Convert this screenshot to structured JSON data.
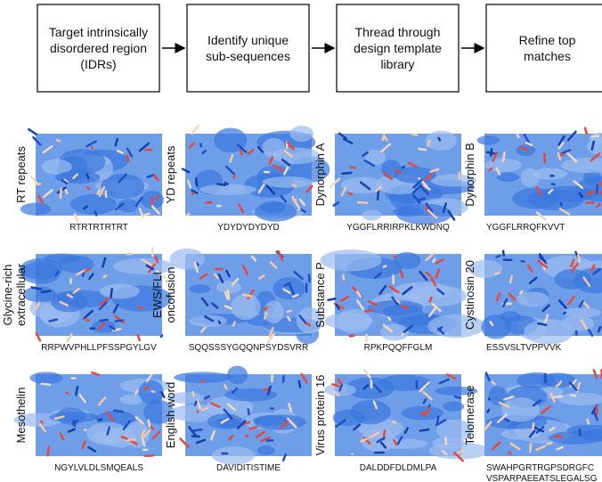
{
  "flow": {
    "steps": [
      {
        "lines": [
          "Target intrinsically",
          "disordered region",
          "(IDRs)"
        ]
      },
      {
        "lines": [
          "Identify unique",
          "sub-sequences"
        ]
      },
      {
        "lines": [
          "Thread through",
          "design template",
          "library"
        ]
      },
      {
        "lines": [
          "Refine top",
          "matches"
        ]
      }
    ]
  },
  "panels": [
    {
      "label": [
        "RT repeats"
      ],
      "sequence": [
        "RTRTRTRTRT"
      ]
    },
    {
      "label": [
        "YD repeats"
      ],
      "sequence": [
        "YDYDYDYDYD"
      ]
    },
    {
      "label": [
        "Dynorphin A"
      ],
      "sequence": [
        "YGGFLRRIRPKLKWDNQ"
      ]
    },
    {
      "label": [
        "Dynorphin B"
      ],
      "sequence": [
        "YGGFLRRQFKVVT"
      ]
    },
    {
      "label": [
        "Glycine-rich",
        "extracellular"
      ],
      "sequence": [
        "RRPWVPHLLPFSSPGYLGV"
      ]
    },
    {
      "label": [
        "EWS/FLI",
        "oncofusion"
      ],
      "sequence": [
        "SQQSSSYGQQNPSYDSVRR"
      ]
    },
    {
      "label": [
        "Substance P"
      ],
      "sequence": [
        "RPKPQQFFGLM"
      ]
    },
    {
      "label": [
        "Cystinosin 20"
      ],
      "sequence": [
        "ESSVSLTVPPVVK"
      ]
    },
    {
      "label": [
        "Mesothelin"
      ],
      "sequence": [
        "NGYLVLDLSMQEALS"
      ]
    },
    {
      "label": [
        "English word"
      ],
      "sequence": [
        "DAVIDITISTIME"
      ]
    },
    {
      "label": [
        "Virus protein 16"
      ],
      "sequence": [
        "DALDDFDLDMLPA"
      ]
    },
    {
      "label": [
        "Telomerase"
      ],
      "sequence": [
        "SWAHPGRTRGPSDRGFC",
        "VSPARPAEEATSLEGALSG"
      ]
    }
  ]
}
